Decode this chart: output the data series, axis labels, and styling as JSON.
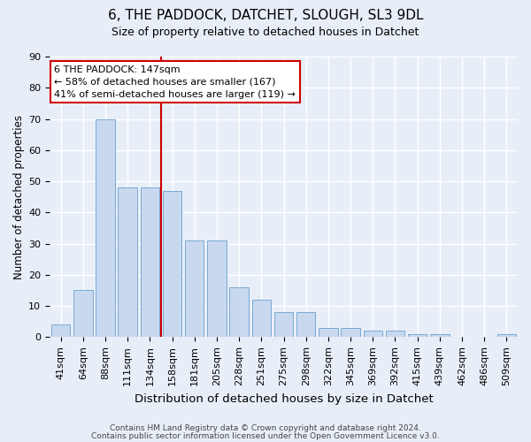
{
  "title1": "6, THE PADDOCK, DATCHET, SLOUGH, SL3 9DL",
  "title2": "Size of property relative to detached houses in Datchet",
  "xlabel": "Distribution of detached houses by size in Datchet",
  "ylabel": "Number of detached properties",
  "categories": [
    "41sqm",
    "64sqm",
    "88sqm",
    "111sqm",
    "134sqm",
    "158sqm",
    "181sqm",
    "205sqm",
    "228sqm",
    "251sqm",
    "275sqm",
    "298sqm",
    "322sqm",
    "345sqm",
    "369sqm",
    "392sqm",
    "415sqm",
    "439sqm",
    "462sqm",
    "486sqm",
    "509sqm"
  ],
  "values": [
    4,
    15,
    70,
    48,
    48,
    47,
    31,
    31,
    16,
    12,
    8,
    8,
    3,
    3,
    2,
    2,
    1,
    1,
    0,
    0,
    1
  ],
  "bar_color": "#c8d8ee",
  "bar_edge_color": "#7aaad4",
  "ylim": [
    0,
    90
  ],
  "yticks": [
    0,
    10,
    20,
    30,
    40,
    50,
    60,
    70,
    80,
    90
  ],
  "vline_x": 4.5,
  "vline_color": "#cc0000",
  "annotation_line1": "6 THE PADDOCK: 147sqm",
  "annotation_line2": "← 58% of detached houses are smaller (167)",
  "annotation_line3": "41% of semi-detached houses are larger (119) →",
  "annotation_box_color": "#ffffff",
  "annotation_box_edge": "#cc0000",
  "footer1": "Contains HM Land Registry data © Crown copyright and database right 2024.",
  "footer2": "Contains public sector information licensed under the Open Government Licence v3.0.",
  "bg_color": "#e8eef8",
  "plot_bg_color": "#e8eef8",
  "grid_color": "#ffffff",
  "title1_fontsize": 11,
  "title2_fontsize": 9,
  "ylabel_fontsize": 8.5,
  "xlabel_fontsize": 9.5,
  "tick_fontsize": 8,
  "annotation_fontsize": 8,
  "footer_fontsize": 6.5
}
